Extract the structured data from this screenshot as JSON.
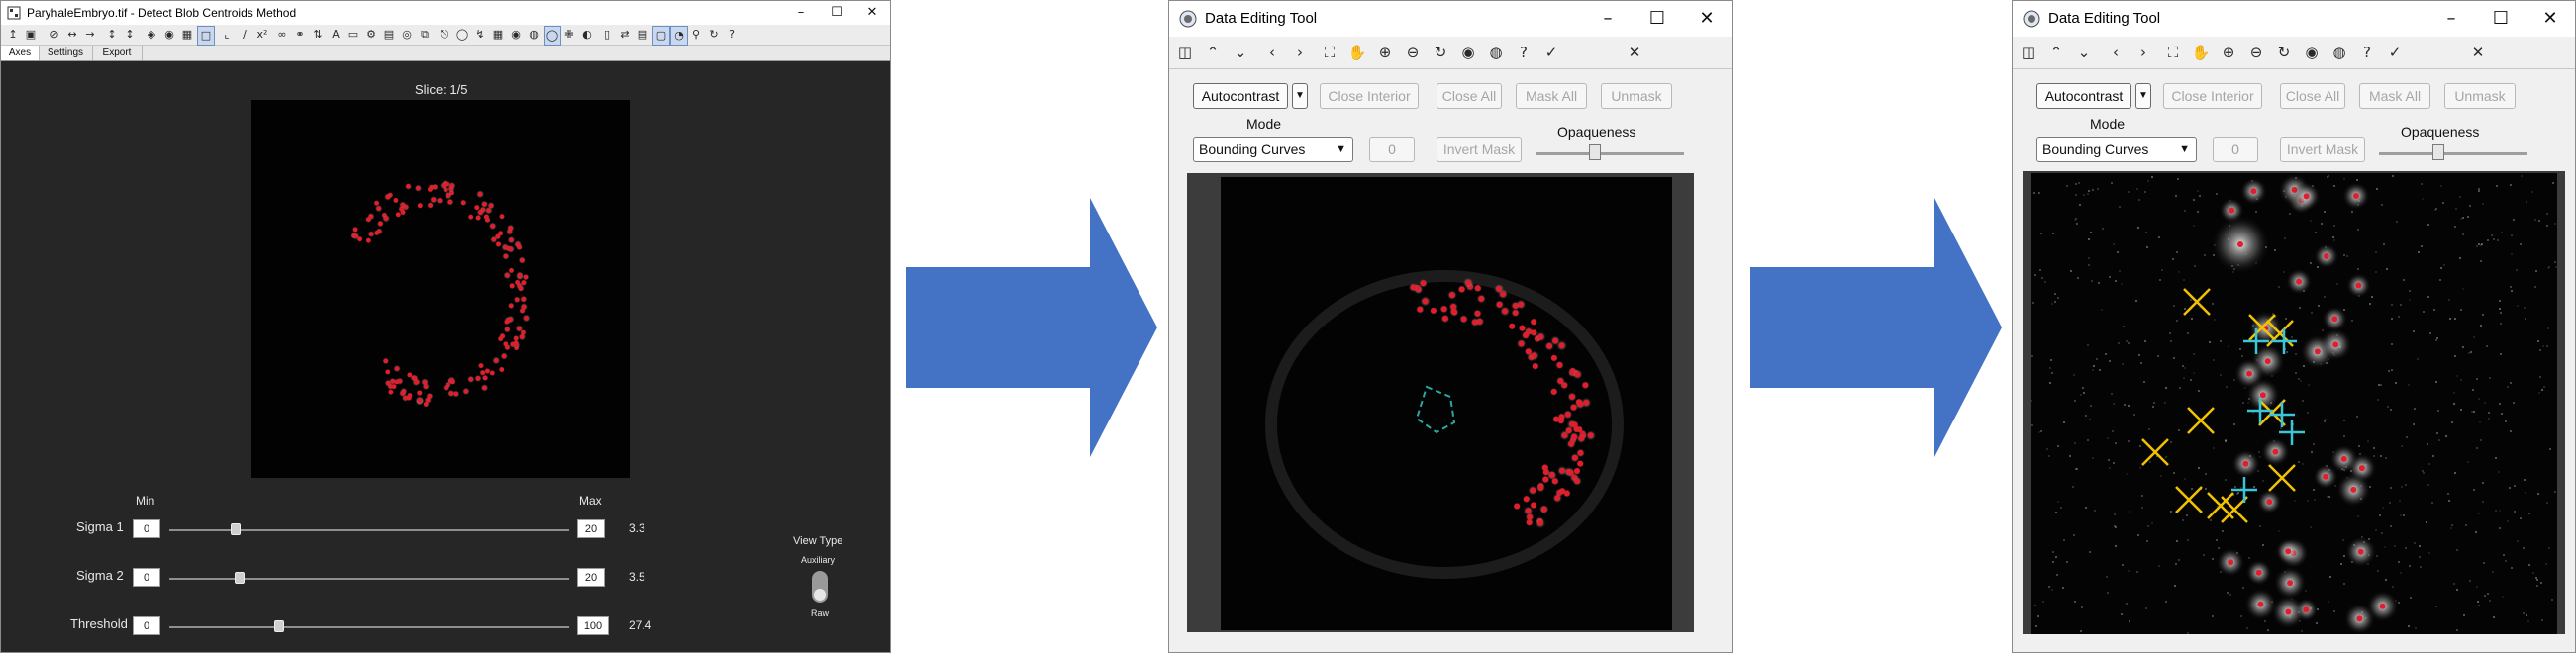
{
  "colors": {
    "arrow": "#4472c4",
    "window_dark": "#262626",
    "marker_red": "#e31d2b",
    "marker_yellow": "#f2c200",
    "marker_cyan": "#39c6d8"
  },
  "window1": {
    "title": "ParyhaleEmbryo.tif - Detect Blob Centroids Method",
    "tabs": [
      "Axes",
      "Settings",
      "Export"
    ],
    "slice_label": "Slice: 1/5",
    "min_label": "Min",
    "max_label": "Max",
    "sliders": [
      {
        "label": "Sigma 1",
        "min": "0",
        "max": "20",
        "value": "3.3",
        "fraction": 0.165
      },
      {
        "label": "Sigma 2",
        "min": "0",
        "max": "20",
        "value": "3.5",
        "fraction": 0.175
      },
      {
        "label": "Threshold",
        "min": "0",
        "max": "100",
        "value": "27.4",
        "fraction": 0.274
      }
    ],
    "view_type": {
      "title": "View Type",
      "option_top": "Auxiliary",
      "option_bottom": "Raw",
      "selected": "Raw"
    },
    "toolbar_icons": [
      "save-icon",
      "new-figure-icon",
      "no-entry-icon",
      "arrows-horizontal-icon",
      "arrows-vertical-icon",
      "layers-icon",
      "record-icon",
      "crop-icon",
      "measure-icon",
      "link-icon",
      "sort-icon",
      "pan-icon",
      "zoom-icon",
      "rotate-icon",
      "help-icon"
    ]
  },
  "window2": {
    "title": "Data Editing Tool",
    "buttons": {
      "autocontrast": "Autocontrast",
      "close_interior": "Close Interior",
      "close_all": "Close All",
      "mask_all": "Mask All",
      "unmask": "Unmask",
      "invert_mask": "Invert Mask"
    },
    "mode_label": "Mode",
    "mode_value": "Bounding Curves",
    "number_value": "0",
    "opaqueness_label": "Opaqueness",
    "opaqueness_value": 0.4
  },
  "window3": {
    "title": "Data Editing Tool",
    "buttons": {
      "autocontrast": "Autocontrast",
      "close_interior": "Close Interior",
      "close_all": "Close All",
      "mask_all": "Mask All",
      "unmask": "Unmask",
      "invert_mask": "Invert Mask"
    },
    "mode_label": "Mode",
    "mode_value": "Bounding Curves",
    "number_value": "0",
    "opaqueness_label": "Opaqueness",
    "opaqueness_value": 0.4
  }
}
